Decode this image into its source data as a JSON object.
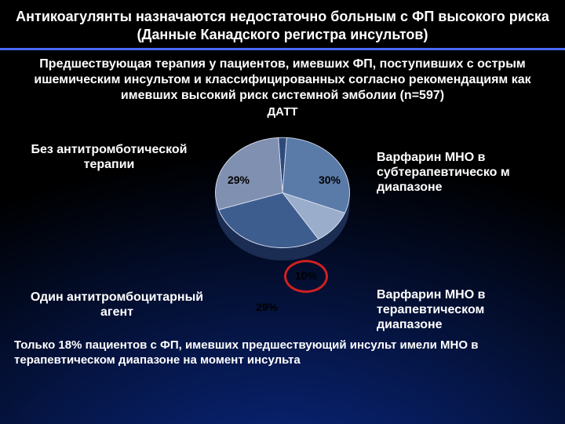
{
  "background": {
    "gradient_from": "#000000",
    "gradient_to": "#0a2a8a"
  },
  "title": {
    "text": "Антикоагулянты назначаются недостаточно больным с ФП высокого риска  (Данные Канадского регистра инсультов)",
    "fontsize": 18,
    "color": "#ffffff"
  },
  "divider_color": "#4a6aff",
  "subtitle": {
    "text": "Предшествующая терапия у пациентов, имевших ФП, поступивших с острым ишемическим инсультом и классифицированных согласно рекомендациям как имевших высокий риск системной эмболии (n=597)",
    "fontsize": 16,
    "color": "#ffffff"
  },
  "top_category_label": {
    "text": "ДАТТ",
    "fontsize": 15
  },
  "pie": {
    "type": "pie",
    "background_color": "transparent",
    "slices": [
      {
        "label": "ДАТТ",
        "value": 2,
        "display": "2%",
        "color": "#2e4a7a"
      },
      {
        "label": "Варфарин МНО в субтерапевтическом диапазоне",
        "value": 30,
        "display": "30%",
        "color": "#5a7aa8"
      },
      {
        "label": "Варфарин МНО в терапевтическом диапазоне",
        "value": 10,
        "display": "10%",
        "color": "#9aaecc"
      },
      {
        "label": "Один антитромбоцитарный агент",
        "value": 29,
        "display": "29%",
        "color": "#3e5d8f"
      },
      {
        "label": "Без антитромботической терапии",
        "value": 29,
        "display": "29%",
        "color": "#8090b0"
      }
    ],
    "label_fontsize": 16,
    "label_color": "#ffffff",
    "datalabel_fontsize": 14,
    "datalabel_color": "#000000",
    "start_angle_deg": -93.6,
    "tilt": "3d-oblique",
    "slice_border_color": "#d8e0f0",
    "highlight": {
      "slice_index": 2,
      "ring_color": "#d02020",
      "ring_width": 3
    }
  },
  "side_labels": {
    "left_top": "Без антитромботической терапии",
    "right_top": "Варфарин МНО в субтерапевтическо м диапазоне",
    "left_bottom": "Один антитромбоцитарный агент",
    "right_bottom": "Варфарин МНО в терапевтическом диапазоне"
  },
  "footer": {
    "text": "Только 18% пациентов с ФП, имевших предшествующий инсульт имели МНО в терапевтическом диапазоне на момент инсульта",
    "fontsize": 15,
    "color": "#ffffff"
  }
}
